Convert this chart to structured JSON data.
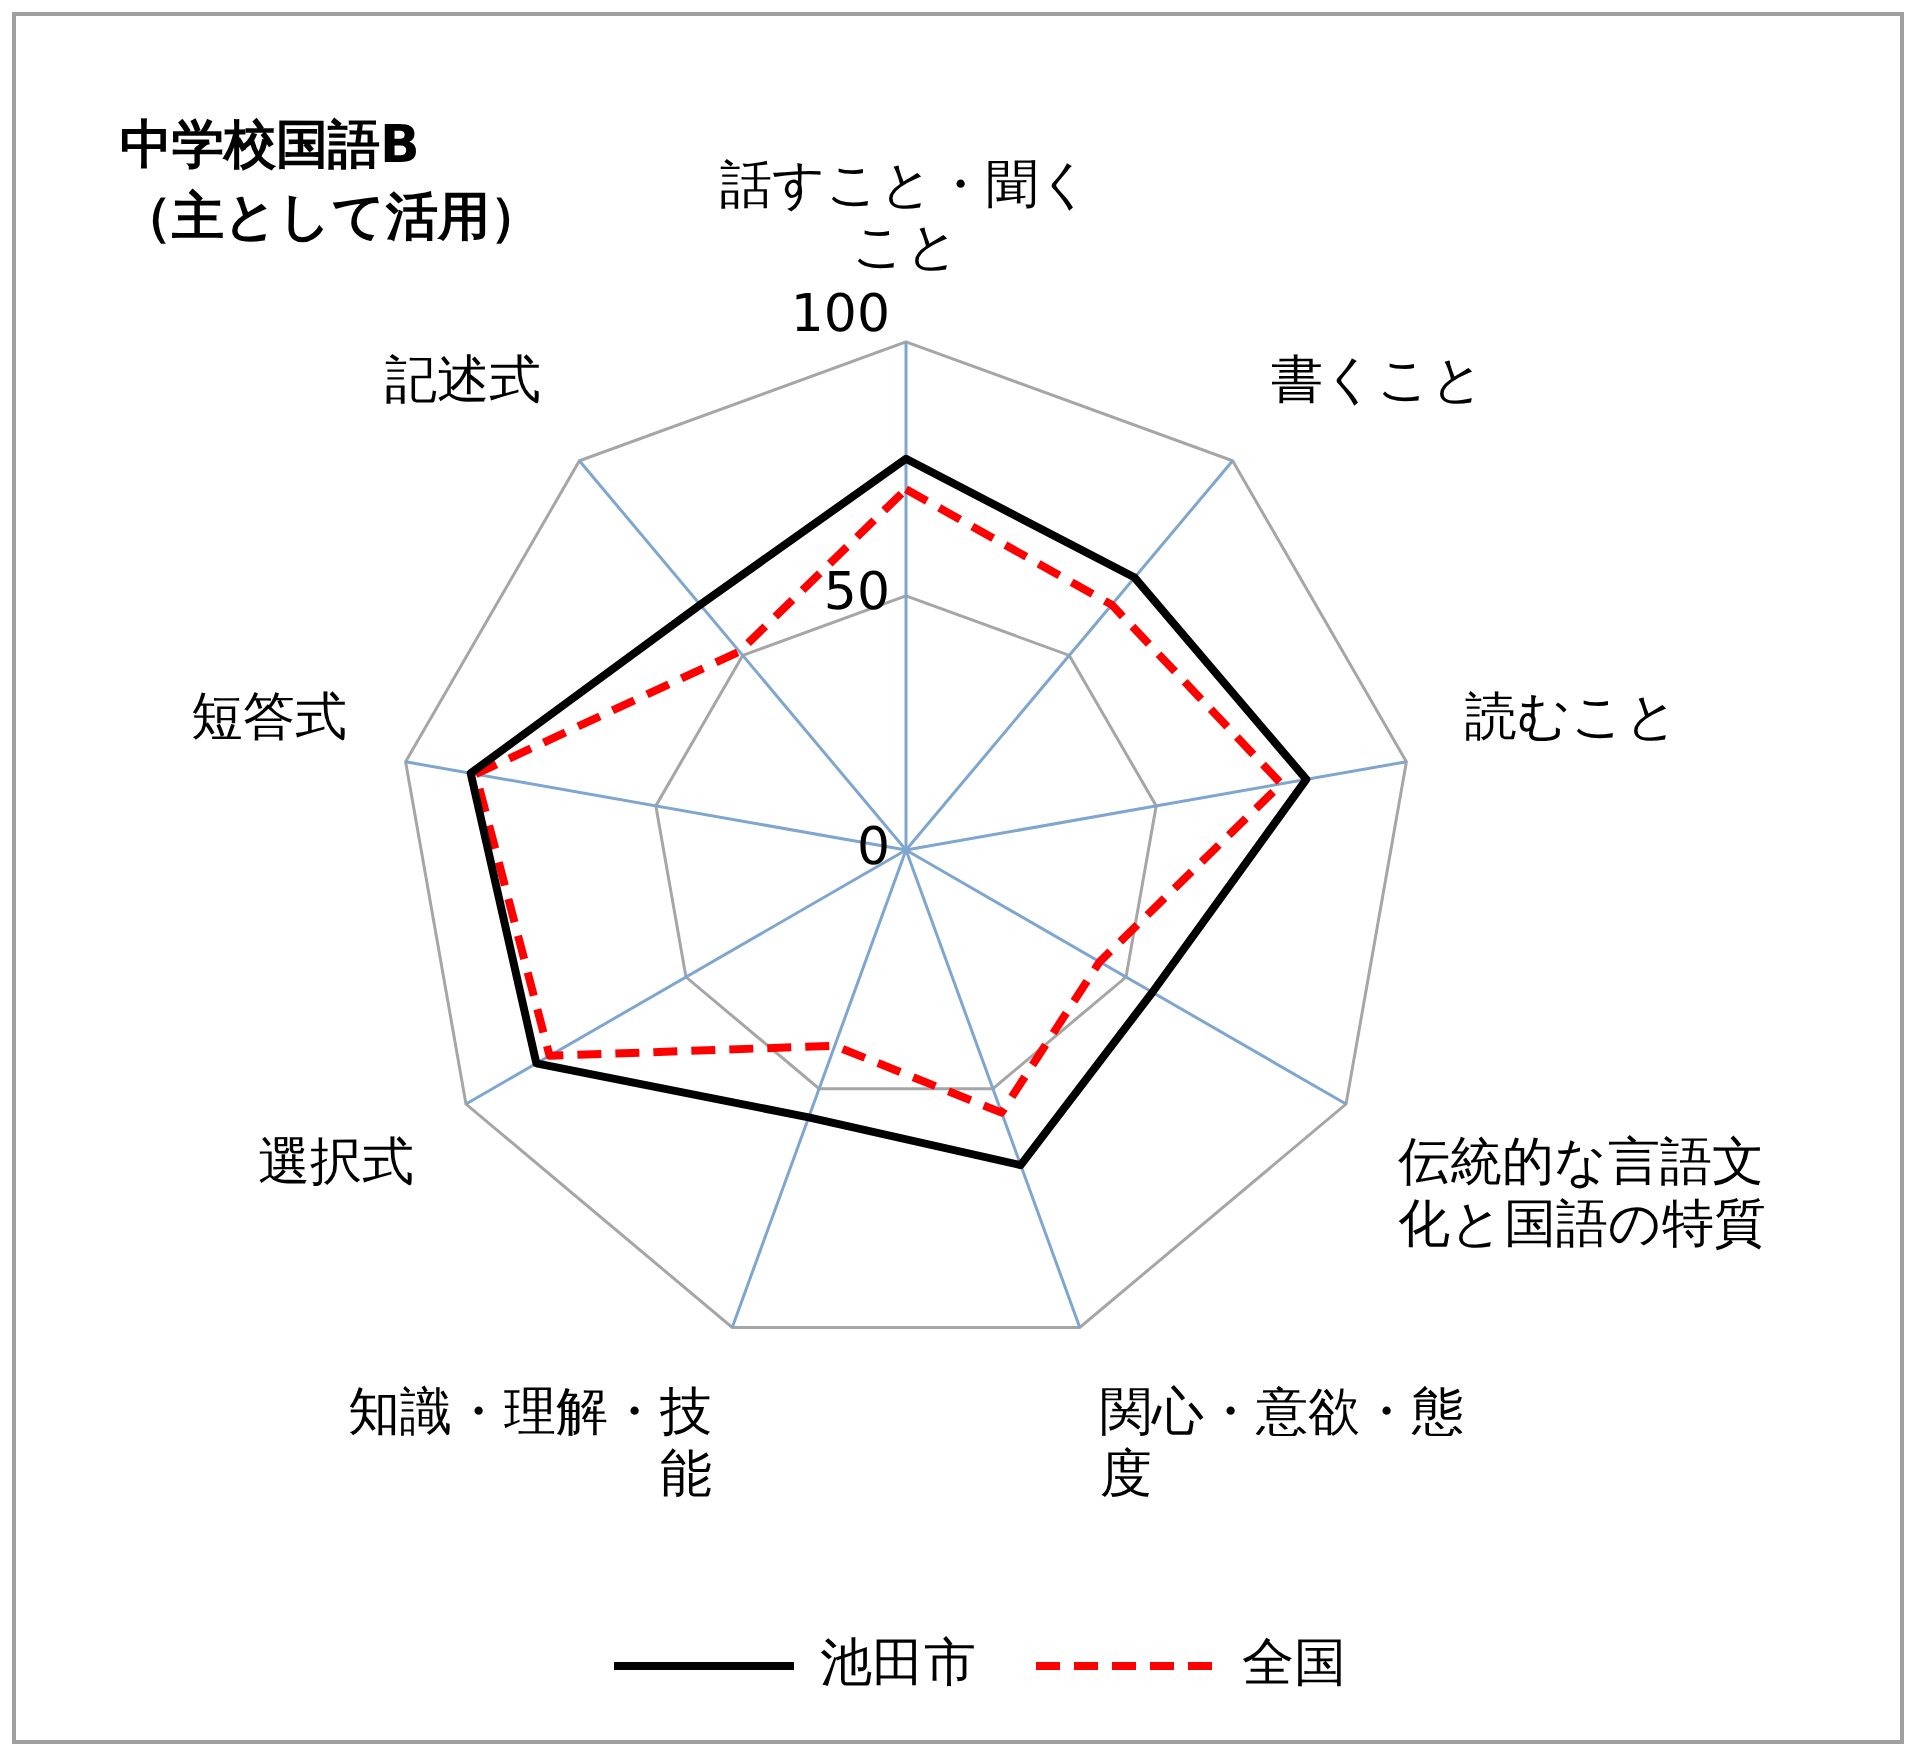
{
  "chart_data": {
    "type": "radar",
    "title": "中学校国語B\n（主として活用）",
    "categories": [
      "話すこと・聞くこと",
      "書くこと",
      "読むこと",
      "伝統的な言語文化と国語の特質",
      "関心・意欲・態度",
      "知識・理解・技能",
      "選択式",
      "短答式",
      "記述式"
    ],
    "series": [
      {
        "name": "池田市",
        "color": "#000000",
        "line_style": "solid",
        "values": [
          77,
          70,
          80,
          56,
          66,
          56,
          84,
          87,
          63
        ]
      },
      {
        "name": "全国",
        "color": "#ff0000",
        "line_style": "dashed",
        "values": [
          71,
          63,
          75,
          44,
          55,
          41,
          81,
          86,
          51
        ]
      }
    ],
    "ylim": [
      0,
      100
    ],
    "yticks": [
      0,
      50,
      100
    ],
    "grid": true,
    "legend": "bottom",
    "marker": "none"
  }
}
